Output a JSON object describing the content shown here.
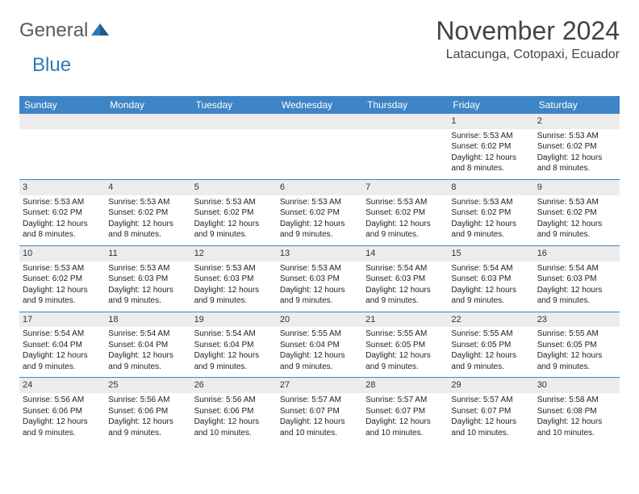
{
  "logo": {
    "text1": "General",
    "text2": "Blue"
  },
  "title": "November 2024",
  "location": "Latacunga, Cotopaxi, Ecuador",
  "colors": {
    "header_bg": "#3d85c6",
    "header_fg": "#ffffff",
    "daynum_bg": "#ececec",
    "border": "#3d85c6",
    "text": "#222222",
    "logo_gray": "#5a5a5a",
    "logo_blue": "#2e79b8"
  },
  "weekdays": [
    "Sunday",
    "Monday",
    "Tuesday",
    "Wednesday",
    "Thursday",
    "Friday",
    "Saturday"
  ],
  "weeks": [
    [
      {
        "n": "",
        "lines": []
      },
      {
        "n": "",
        "lines": []
      },
      {
        "n": "",
        "lines": []
      },
      {
        "n": "",
        "lines": []
      },
      {
        "n": "",
        "lines": []
      },
      {
        "n": "1",
        "lines": [
          "Sunrise: 5:53 AM",
          "Sunset: 6:02 PM",
          "Daylight: 12 hours and 8 minutes."
        ]
      },
      {
        "n": "2",
        "lines": [
          "Sunrise: 5:53 AM",
          "Sunset: 6:02 PM",
          "Daylight: 12 hours and 8 minutes."
        ]
      }
    ],
    [
      {
        "n": "3",
        "lines": [
          "Sunrise: 5:53 AM",
          "Sunset: 6:02 PM",
          "Daylight: 12 hours and 8 minutes."
        ]
      },
      {
        "n": "4",
        "lines": [
          "Sunrise: 5:53 AM",
          "Sunset: 6:02 PM",
          "Daylight: 12 hours and 8 minutes."
        ]
      },
      {
        "n": "5",
        "lines": [
          "Sunrise: 5:53 AM",
          "Sunset: 6:02 PM",
          "Daylight: 12 hours and 9 minutes."
        ]
      },
      {
        "n": "6",
        "lines": [
          "Sunrise: 5:53 AM",
          "Sunset: 6:02 PM",
          "Daylight: 12 hours and 9 minutes."
        ]
      },
      {
        "n": "7",
        "lines": [
          "Sunrise: 5:53 AM",
          "Sunset: 6:02 PM",
          "Daylight: 12 hours and 9 minutes."
        ]
      },
      {
        "n": "8",
        "lines": [
          "Sunrise: 5:53 AM",
          "Sunset: 6:02 PM",
          "Daylight: 12 hours and 9 minutes."
        ]
      },
      {
        "n": "9",
        "lines": [
          "Sunrise: 5:53 AM",
          "Sunset: 6:02 PM",
          "Daylight: 12 hours and 9 minutes."
        ]
      }
    ],
    [
      {
        "n": "10",
        "lines": [
          "Sunrise: 5:53 AM",
          "Sunset: 6:02 PM",
          "Daylight: 12 hours and 9 minutes."
        ]
      },
      {
        "n": "11",
        "lines": [
          "Sunrise: 5:53 AM",
          "Sunset: 6:03 PM",
          "Daylight: 12 hours and 9 minutes."
        ]
      },
      {
        "n": "12",
        "lines": [
          "Sunrise: 5:53 AM",
          "Sunset: 6:03 PM",
          "Daylight: 12 hours and 9 minutes."
        ]
      },
      {
        "n": "13",
        "lines": [
          "Sunrise: 5:53 AM",
          "Sunset: 6:03 PM",
          "Daylight: 12 hours and 9 minutes."
        ]
      },
      {
        "n": "14",
        "lines": [
          "Sunrise: 5:54 AM",
          "Sunset: 6:03 PM",
          "Daylight: 12 hours and 9 minutes."
        ]
      },
      {
        "n": "15",
        "lines": [
          "Sunrise: 5:54 AM",
          "Sunset: 6:03 PM",
          "Daylight: 12 hours and 9 minutes."
        ]
      },
      {
        "n": "16",
        "lines": [
          "Sunrise: 5:54 AM",
          "Sunset: 6:03 PM",
          "Daylight: 12 hours and 9 minutes."
        ]
      }
    ],
    [
      {
        "n": "17",
        "lines": [
          "Sunrise: 5:54 AM",
          "Sunset: 6:04 PM",
          "Daylight: 12 hours and 9 minutes."
        ]
      },
      {
        "n": "18",
        "lines": [
          "Sunrise: 5:54 AM",
          "Sunset: 6:04 PM",
          "Daylight: 12 hours and 9 minutes."
        ]
      },
      {
        "n": "19",
        "lines": [
          "Sunrise: 5:54 AM",
          "Sunset: 6:04 PM",
          "Daylight: 12 hours and 9 minutes."
        ]
      },
      {
        "n": "20",
        "lines": [
          "Sunrise: 5:55 AM",
          "Sunset: 6:04 PM",
          "Daylight: 12 hours and 9 minutes."
        ]
      },
      {
        "n": "21",
        "lines": [
          "Sunrise: 5:55 AM",
          "Sunset: 6:05 PM",
          "Daylight: 12 hours and 9 minutes."
        ]
      },
      {
        "n": "22",
        "lines": [
          "Sunrise: 5:55 AM",
          "Sunset: 6:05 PM",
          "Daylight: 12 hours and 9 minutes."
        ]
      },
      {
        "n": "23",
        "lines": [
          "Sunrise: 5:55 AM",
          "Sunset: 6:05 PM",
          "Daylight: 12 hours and 9 minutes."
        ]
      }
    ],
    [
      {
        "n": "24",
        "lines": [
          "Sunrise: 5:56 AM",
          "Sunset: 6:06 PM",
          "Daylight: 12 hours and 9 minutes."
        ]
      },
      {
        "n": "25",
        "lines": [
          "Sunrise: 5:56 AM",
          "Sunset: 6:06 PM",
          "Daylight: 12 hours and 9 minutes."
        ]
      },
      {
        "n": "26",
        "lines": [
          "Sunrise: 5:56 AM",
          "Sunset: 6:06 PM",
          "Daylight: 12 hours and 10 minutes."
        ]
      },
      {
        "n": "27",
        "lines": [
          "Sunrise: 5:57 AM",
          "Sunset: 6:07 PM",
          "Daylight: 12 hours and 10 minutes."
        ]
      },
      {
        "n": "28",
        "lines": [
          "Sunrise: 5:57 AM",
          "Sunset: 6:07 PM",
          "Daylight: 12 hours and 10 minutes."
        ]
      },
      {
        "n": "29",
        "lines": [
          "Sunrise: 5:57 AM",
          "Sunset: 6:07 PM",
          "Daylight: 12 hours and 10 minutes."
        ]
      },
      {
        "n": "30",
        "lines": [
          "Sunrise: 5:58 AM",
          "Sunset: 6:08 PM",
          "Daylight: 12 hours and 10 minutes."
        ]
      }
    ]
  ]
}
